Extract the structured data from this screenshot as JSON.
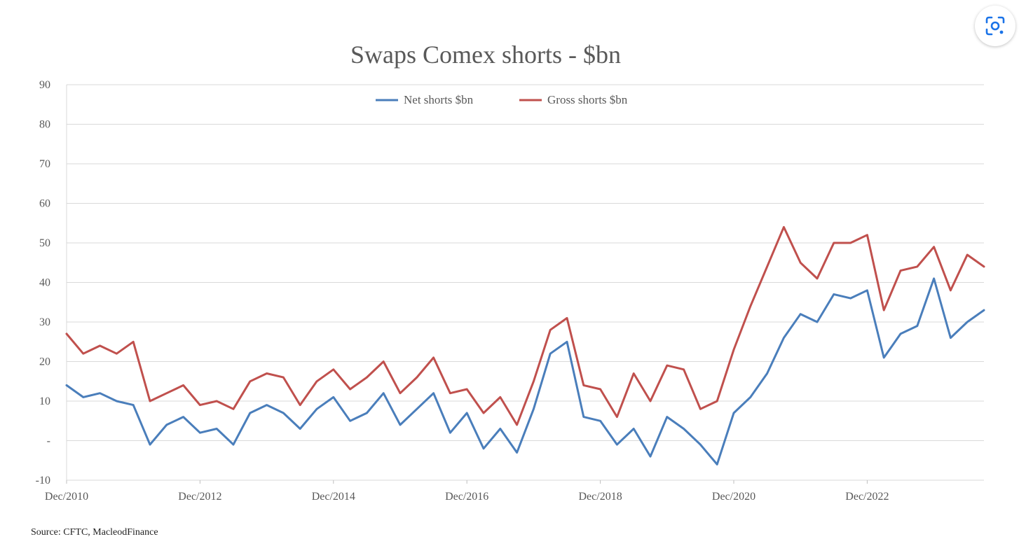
{
  "chart_data": {
    "type": "line",
    "title": "Swaps Comex shorts - $bn",
    "xlabel": "",
    "ylabel": "",
    "ylim": [
      -10,
      90
    ],
    "y_ticks": [
      {
        "value": 90,
        "label": "90"
      },
      {
        "value": 80,
        "label": "80"
      },
      {
        "value": 70,
        "label": "70"
      },
      {
        "value": 60,
        "label": "60"
      },
      {
        "value": 50,
        "label": "50"
      },
      {
        "value": 40,
        "label": "40"
      },
      {
        "value": 30,
        "label": "30"
      },
      {
        "value": 20,
        "label": "20"
      },
      {
        "value": 10,
        "label": "10"
      },
      {
        "value": 0,
        "label": "-"
      },
      {
        "value": -10,
        "label": "-10"
      }
    ],
    "x_ticks": [
      "Dec/2010",
      "Dec/2012",
      "Dec/2014",
      "Dec/2016",
      "Dec/2018",
      "Dec/2020",
      "Dec/2022"
    ],
    "xlim": [
      "2010-12",
      "2024-09"
    ],
    "grid": "horizontal",
    "legend_position": "top-center",
    "x": [
      "2010-12",
      "2011-03",
      "2011-06",
      "2011-09",
      "2011-12",
      "2012-03",
      "2012-06",
      "2012-09",
      "2012-12",
      "2013-03",
      "2013-06",
      "2013-09",
      "2013-12",
      "2014-03",
      "2014-06",
      "2014-09",
      "2014-12",
      "2015-03",
      "2015-06",
      "2015-09",
      "2015-12",
      "2016-03",
      "2016-06",
      "2016-09",
      "2016-12",
      "2017-03",
      "2017-06",
      "2017-09",
      "2017-12",
      "2018-03",
      "2018-06",
      "2018-09",
      "2018-12",
      "2019-03",
      "2019-06",
      "2019-09",
      "2019-12",
      "2020-03",
      "2020-06",
      "2020-09",
      "2020-12",
      "2021-03",
      "2021-06",
      "2021-09",
      "2021-12",
      "2022-03",
      "2022-06",
      "2022-09",
      "2022-12",
      "2023-03",
      "2023-06",
      "2023-09",
      "2023-12",
      "2024-03",
      "2024-06",
      "2024-09"
    ],
    "series": [
      {
        "name": "Net shorts $bn",
        "color": "#4a7ebb",
        "values": [
          14,
          11,
          12,
          10,
          9,
          -1,
          4,
          6,
          2,
          3,
          -1,
          7,
          9,
          7,
          3,
          8,
          11,
          5,
          7,
          12,
          4,
          8,
          12,
          2,
          7,
          -2,
          3,
          -3,
          8,
          22,
          25,
          6,
          5,
          -1,
          3,
          -4,
          6,
          3,
          -1,
          -6,
          7,
          11,
          17,
          26,
          32,
          30,
          37,
          36,
          38,
          21,
          27,
          29,
          41,
          26,
          30,
          33
        ]
      },
      {
        "name": "Gross shorts $bn",
        "color": "#c0504d",
        "values": [
          27,
          22,
          24,
          22,
          25,
          10,
          12,
          14,
          9,
          10,
          8,
          15,
          17,
          16,
          9,
          15,
          18,
          13,
          16,
          20,
          12,
          16,
          21,
          12,
          13,
          7,
          11,
          4,
          15,
          28,
          31,
          14,
          13,
          6,
          17,
          10,
          19,
          18,
          8,
          10,
          23,
          34,
          44,
          54,
          45,
          41,
          50,
          50,
          52,
          33,
          43,
          44,
          49,
          38,
          47,
          44
        ]
      }
    ],
    "source": "Source: CFTC, MacleodFinance"
  }
}
